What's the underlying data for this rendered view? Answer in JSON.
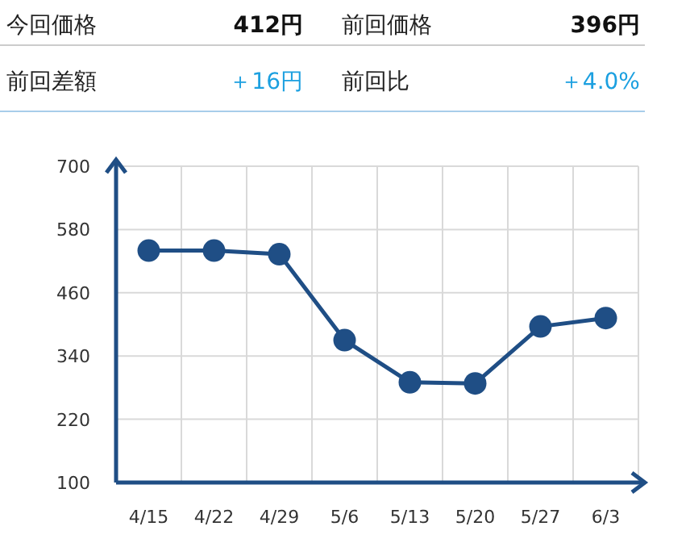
{
  "chart_data": [
    {
      "type": "other",
      "annotations": [
        "今回価格",
        "412円",
        "前回価格",
        "396円",
        "前回差額",
        "＋16円",
        "前回比",
        "＋4.0%"
      ]
    },
    {
      "type": "line",
      "categories": [
        "4/15",
        "4/22",
        "4/29",
        "5/6",
        "5/13",
        "5/20",
        "5/27",
        "6/3"
      ],
      "series": [
        {
          "color": "#1f4e85",
          "values": [
            540,
            540,
            533,
            370,
            290,
            288,
            396,
            412
          ]
        }
      ],
      "ylim": [
        100,
        700
      ],
      "yticks": [
        100,
        220,
        340,
        460,
        580,
        700
      ],
      "grid": true,
      "marker": "circle",
      "line_style": "solid"
    }
  ]
}
